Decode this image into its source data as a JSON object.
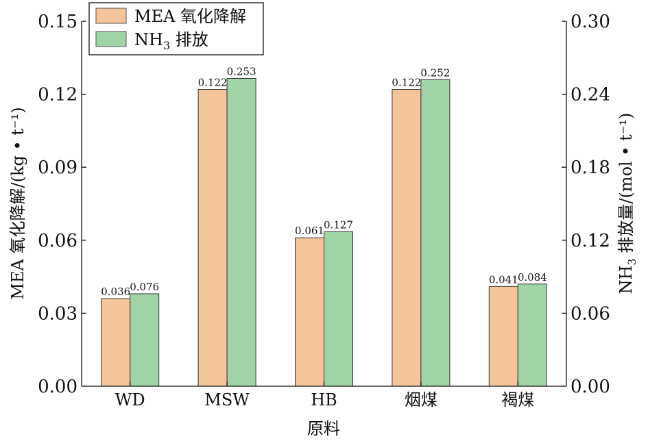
{
  "chart_data": {
    "type": "bar",
    "categories": [
      "WD",
      "MSW",
      "HB",
      "烟煤",
      "褐煤"
    ],
    "series": [
      {
        "name": "MEA 氧化降解",
        "axis": "left",
        "color": "#f4c49a",
        "values": [
          0.036,
          0.122,
          0.061,
          0.122,
          0.041
        ],
        "labels": [
          "0.036",
          "0.122",
          "0.061",
          "0.122",
          "0.041"
        ]
      },
      {
        "name": "NH3 排放",
        "axis": "right",
        "color": "#9fd5a6",
        "values": [
          0.076,
          0.253,
          0.127,
          0.252,
          0.084
        ],
        "labels": [
          "0.076",
          "0.253",
          "0.127",
          "0.252",
          "0.084"
        ]
      }
    ],
    "xlabel": "原料",
    "ylabel_left": "MEA 氧化降解/(kg • t⁻¹)",
    "ylabel_right_prefix": "NH",
    "ylabel_right_sub": "3",
    "ylabel_right_suffix": " 排放量/(mol • t⁻¹)",
    "ylim_left": [
      0,
      0.15
    ],
    "ylim_right": [
      0,
      0.3
    ],
    "yticks_left": [
      "0.00",
      "0.03",
      "0.06",
      "0.09",
      "0.12",
      "0.15"
    ],
    "yticks_right": [
      "0.00",
      "0.06",
      "0.12",
      "0.18",
      "0.24",
      "0.30"
    ],
    "legend": {
      "position": "top-left",
      "item1": "MEA 氧化降解",
      "item2_prefix": "NH",
      "item2_sub": "3",
      "item2_suffix": " 排放"
    },
    "grid": false
  }
}
